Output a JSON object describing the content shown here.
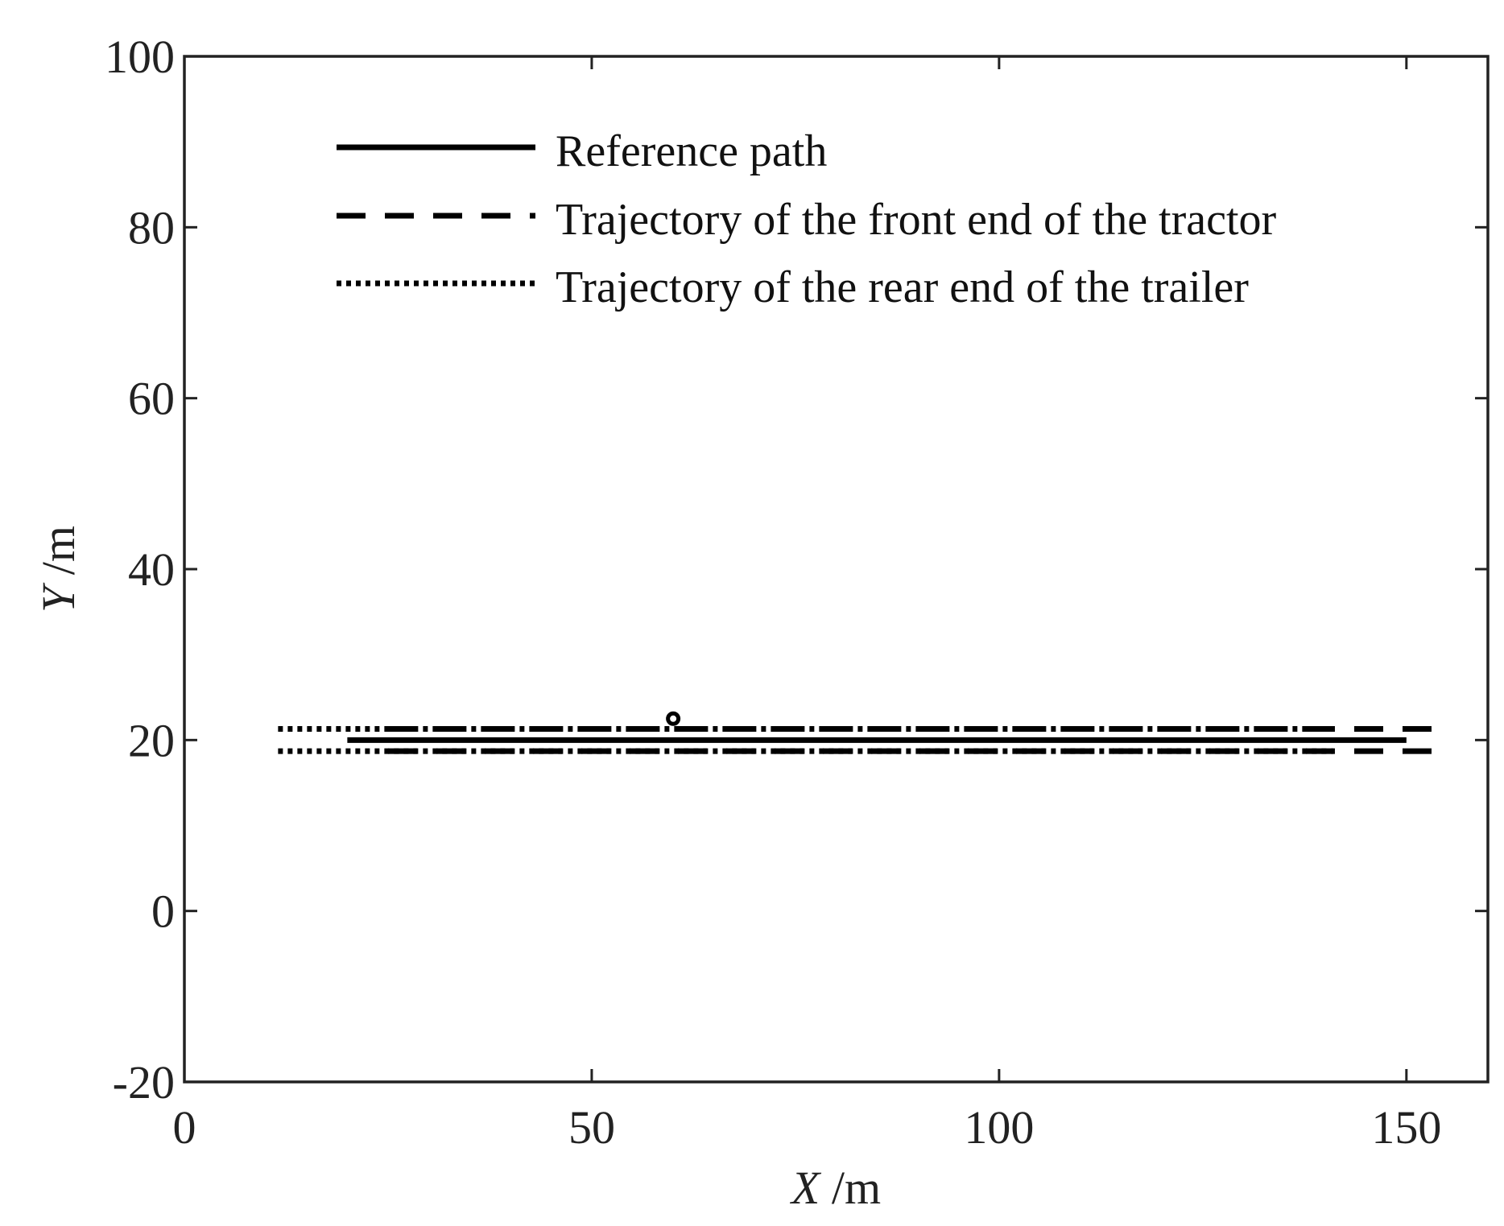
{
  "chart_data": {
    "type": "line",
    "xlabel_var": "X",
    "xlabel_unit": " /m",
    "ylabel_var": "Y",
    "ylabel_unit": " /m",
    "xlim": [
      0,
      160
    ],
    "ylim": [
      -20,
      100
    ],
    "xticks": [
      0,
      50,
      100,
      150
    ],
    "yticks": [
      -20,
      0,
      20,
      40,
      60,
      80,
      100
    ],
    "xtick_labels": [
      "0",
      "50",
      "100",
      "150"
    ],
    "ytick_labels": [
      "-20",
      "0",
      "20",
      "40",
      "60",
      "80",
      "100"
    ],
    "grid": false,
    "legend_position": "top-left",
    "series": [
      {
        "name": "Reference path",
        "style": "solid",
        "x": [
          20,
          150
        ],
        "y": [
          20,
          20
        ]
      },
      {
        "name": "Trajectory of the front end of the tractor",
        "style": "dashed",
        "x": [
          25,
          155
        ],
        "y": [
          21.3,
          21.3
        ],
        "x2": [
          25,
          155
        ],
        "y2": [
          18.7,
          18.7
        ]
      },
      {
        "name": "Trajectory of the rear end of the trailer",
        "style": "dotted",
        "x": [
          11.5,
          141
        ],
        "y": [
          21.3,
          21.3
        ],
        "x2": [
          11.5,
          141
        ],
        "y2": [
          18.7,
          18.7
        ]
      }
    ],
    "markers": [
      {
        "x": 60,
        "y": 22.5
      }
    ],
    "colors": {
      "line": "#000000",
      "axis": "#222222"
    }
  }
}
